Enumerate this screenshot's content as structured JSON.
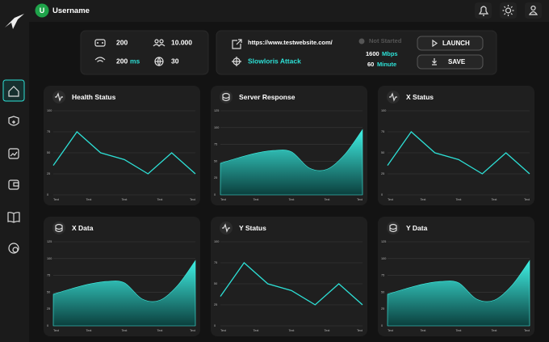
{
  "header": {
    "avatar": "U",
    "username": "Username"
  },
  "stats": {
    "bots": "200",
    "users": "10.000",
    "speed": "200",
    "speed_unit": "ms",
    "sites": "30"
  },
  "attack": {
    "url": "https://www.testwebsite.com/",
    "method": "Slowloris Attack",
    "status": "Not Started",
    "bandwidth": "1600",
    "bandwidth_unit": "Mbps",
    "duration": "60",
    "duration_unit": "Minute",
    "launch": "LAUNCH",
    "save": "SAVE"
  },
  "cards": [
    {
      "title": "Health Status",
      "type": "line",
      "ylim": [
        0,
        100
      ],
      "yticks": [
        0,
        25,
        50,
        75,
        100
      ],
      "x_labels": [
        "Text",
        "Text",
        "Text",
        "Text",
        "Text"
      ],
      "values": [
        35,
        75,
        50,
        42,
        25,
        50,
        25
      ]
    },
    {
      "title": "Server Response",
      "type": "area",
      "ylim": [
        0,
        125
      ],
      "yticks": [
        0,
        25,
        50,
        75,
        100,
        125
      ],
      "x_labels": [
        "Text",
        "Text",
        "Text",
        "Text",
        "Text"
      ],
      "values": [
        47,
        55,
        62,
        66,
        64,
        40,
        38,
        60,
        97
      ]
    },
    {
      "title": "X Status",
      "type": "line",
      "ylim": [
        0,
        100
      ],
      "yticks": [
        0,
        25,
        50,
        75,
        100
      ],
      "x_labels": [
        "Text",
        "Text",
        "Text",
        "Text",
        "Text"
      ],
      "values": [
        35,
        75,
        50,
        42,
        25,
        50,
        25
      ]
    },
    {
      "title": "X Data",
      "type": "area",
      "ylim": [
        0,
        125
      ],
      "yticks": [
        0,
        25,
        50,
        75,
        100,
        125
      ],
      "x_labels": [
        "Text",
        "Text",
        "Text",
        "Text",
        "Text"
      ],
      "values": [
        47,
        55,
        62,
        66,
        64,
        40,
        38,
        60,
        97
      ]
    },
    {
      "title": "Y Status",
      "type": "line",
      "ylim": [
        0,
        100
      ],
      "yticks": [
        0,
        25,
        50,
        75,
        100
      ],
      "x_labels": [
        "Text",
        "Text",
        "Text",
        "Text",
        "Text"
      ],
      "values": [
        35,
        75,
        50,
        42,
        25,
        50,
        25
      ]
    },
    {
      "title": "Y Data",
      "type": "area",
      "ylim": [
        0,
        125
      ],
      "yticks": [
        0,
        25,
        50,
        75,
        100,
        125
      ],
      "x_labels": [
        "Text",
        "Text",
        "Text",
        "Text",
        "Text"
      ],
      "values": [
        47,
        55,
        62,
        66,
        64,
        40,
        38,
        60,
        97
      ]
    }
  ]
}
